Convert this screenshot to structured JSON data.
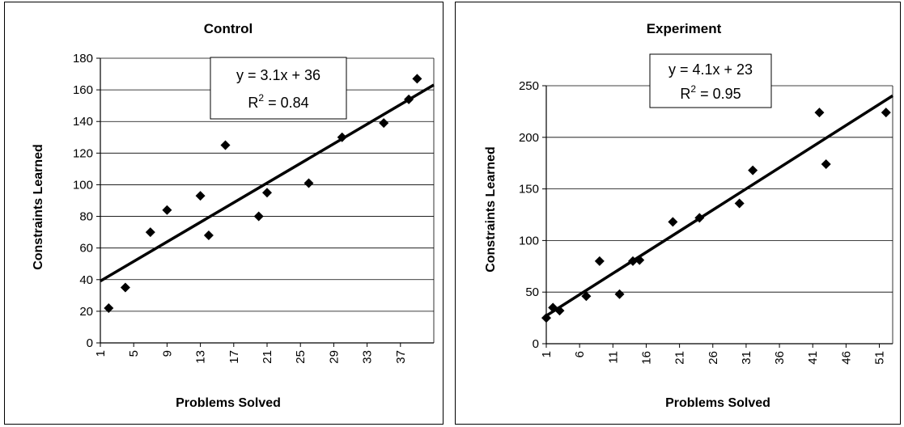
{
  "chart_data": [
    {
      "type": "scatter",
      "title": "Control",
      "xlabel": "Problems Solved",
      "ylabel": "Constraints Learned",
      "ylim": [
        0,
        180
      ],
      "y_ticks": [
        0,
        20,
        40,
        60,
        80,
        100,
        120,
        140,
        160,
        180
      ],
      "xlim": [
        1,
        41
      ],
      "x_ticks": [
        1,
        5,
        9,
        13,
        17,
        21,
        25,
        29,
        33,
        37
      ],
      "grid": "horizontal",
      "points": [
        {
          "x": 2,
          "y": 22
        },
        {
          "x": 4,
          "y": 35
        },
        {
          "x": 7,
          "y": 70
        },
        {
          "x": 9,
          "y": 84
        },
        {
          "x": 13,
          "y": 93
        },
        {
          "x": 14,
          "y": 68
        },
        {
          "x": 16,
          "y": 125
        },
        {
          "x": 20,
          "y": 80
        },
        {
          "x": 21,
          "y": 95
        },
        {
          "x": 26,
          "y": 101
        },
        {
          "x": 30,
          "y": 130
        },
        {
          "x": 35,
          "y": 139
        },
        {
          "x": 38,
          "y": 154
        },
        {
          "x": 39,
          "y": 167
        }
      ],
      "trendline": {
        "slope": 3.1,
        "intercept": 36,
        "x_range": [
          1,
          41
        ]
      },
      "equation": "y = 3.1x + 36",
      "r2_label": "R",
      "r2_sup": "2",
      "r2_value": " = 0.84"
    },
    {
      "type": "scatter",
      "title": "Experiment",
      "xlabel": "Problems Solved",
      "ylabel": "Constraints Learned",
      "ylim": [
        0,
        250
      ],
      "y_ticks": [
        0,
        50,
        100,
        150,
        200,
        250
      ],
      "xlim": [
        1,
        53
      ],
      "x_ticks": [
        1,
        6,
        11,
        16,
        21,
        26,
        31,
        36,
        41,
        46,
        51
      ],
      "grid": "horizontal",
      "points": [
        {
          "x": 1,
          "y": 25
        },
        {
          "x": 2,
          "y": 35
        },
        {
          "x": 3,
          "y": 32
        },
        {
          "x": 7,
          "y": 46
        },
        {
          "x": 9,
          "y": 80
        },
        {
          "x": 12,
          "y": 48
        },
        {
          "x": 14,
          "y": 80
        },
        {
          "x": 15,
          "y": 81
        },
        {
          "x": 20,
          "y": 118
        },
        {
          "x": 24,
          "y": 122
        },
        {
          "x": 30,
          "y": 136
        },
        {
          "x": 32,
          "y": 168
        },
        {
          "x": 42,
          "y": 224
        },
        {
          "x": 43,
          "y": 174
        },
        {
          "x": 52,
          "y": 224
        }
      ],
      "trendline": {
        "slope": 4.1,
        "intercept": 23,
        "x_range": [
          1,
          53
        ]
      },
      "equation": "y = 4.1x + 23",
      "r2_label": "R",
      "r2_sup": "2",
      "r2_value": " = 0.95"
    }
  ]
}
